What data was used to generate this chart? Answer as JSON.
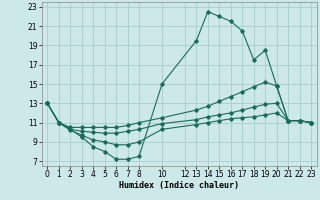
{
  "xlabel": "Humidex (Indice chaleur)",
  "background_color": "#cce8e8",
  "grid_color": "#aacccc",
  "line_color": "#1a6b5a",
  "xlim": [
    -0.5,
    23.5
  ],
  "ylim": [
    6.5,
    23.5
  ],
  "xticks": [
    0,
    1,
    2,
    3,
    4,
    5,
    6,
    7,
    8,
    10,
    12,
    13,
    14,
    15,
    16,
    17,
    18,
    19,
    20,
    21,
    22,
    23
  ],
  "yticks": [
    7,
    9,
    11,
    13,
    15,
    17,
    19,
    21,
    23
  ],
  "curves": [
    {
      "x": [
        0,
        1,
        2,
        3,
        4,
        5,
        6,
        7,
        8,
        10,
        13,
        14,
        15,
        16,
        17,
        18,
        19,
        20,
        21,
        22,
        23
      ],
      "y": [
        13,
        11,
        10.3,
        9.5,
        8.5,
        8.0,
        7.2,
        7.2,
        7.5,
        15.0,
        19.5,
        22.5,
        22.0,
        21.5,
        20.5,
        17.5,
        18.5,
        14.8,
        11.2,
        11.2,
        11.0
      ]
    },
    {
      "x": [
        0,
        1,
        2,
        3,
        4,
        5,
        6,
        7,
        8,
        10,
        13,
        14,
        15,
        16,
        17,
        18,
        19,
        20,
        21,
        22,
        23
      ],
      "y": [
        13,
        11,
        10.5,
        10.5,
        10.5,
        10.5,
        10.5,
        10.7,
        11.0,
        11.5,
        12.3,
        12.7,
        13.2,
        13.7,
        14.2,
        14.7,
        15.2,
        14.8,
        11.2,
        11.2,
        11.0
      ]
    },
    {
      "x": [
        0,
        1,
        2,
        3,
        4,
        5,
        6,
        7,
        8,
        10,
        13,
        14,
        15,
        16,
        17,
        18,
        19,
        20,
        21,
        22,
        23
      ],
      "y": [
        13,
        11,
        10.3,
        10.1,
        10.0,
        9.9,
        9.9,
        10.1,
        10.3,
        10.9,
        11.3,
        11.6,
        11.8,
        12.0,
        12.3,
        12.6,
        12.9,
        13.0,
        11.2,
        11.2,
        11.0
      ]
    },
    {
      "x": [
        0,
        1,
        2,
        3,
        4,
        5,
        6,
        7,
        8,
        10,
        13,
        14,
        15,
        16,
        17,
        18,
        19,
        20,
        21,
        22,
        23
      ],
      "y": [
        13,
        11,
        10.2,
        9.7,
        9.2,
        9.0,
        8.7,
        8.7,
        9.0,
        10.3,
        10.8,
        11.0,
        11.2,
        11.4,
        11.5,
        11.6,
        11.8,
        12.0,
        11.2,
        11.2,
        11.0
      ]
    }
  ]
}
